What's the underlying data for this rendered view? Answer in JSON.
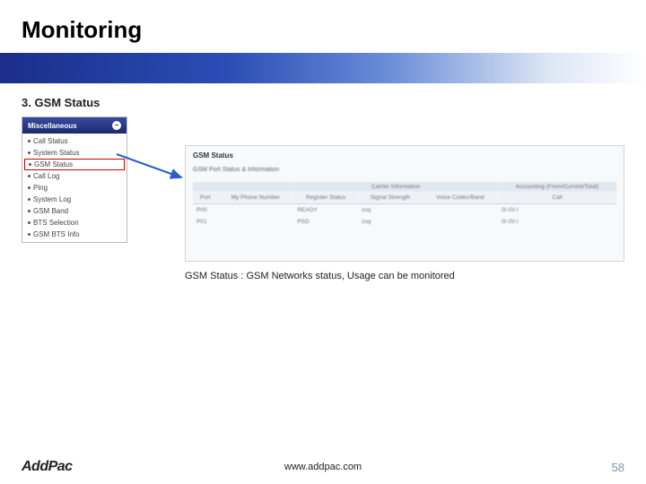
{
  "title": "Monitoring",
  "section": "3. GSM Status",
  "sidebar": {
    "header": "Miscellaneous",
    "items": [
      "Call Status",
      "System Status",
      "GSM Status",
      "Call Log",
      "Ping",
      "System Log",
      "GSM Band",
      "BTS Selection",
      "GSM BTS Info"
    ],
    "highlight_index": 2
  },
  "panel": {
    "title": "GSM Status",
    "subtitle": "GSM Port Status & Information",
    "group_headers": [
      "",
      "Carrier Information",
      "Accounting (From/Current/Total)"
    ],
    "columns": [
      "Port",
      "My Phone Number",
      "Register Status",
      "Signal Strength",
      "Voice Codec/Band",
      "Call"
    ],
    "rows": [
      [
        "P00",
        "",
        "READY",
        "csq",
        "",
        "0/-/0/-/"
      ],
      [
        "P01",
        "",
        "PSD",
        "csq",
        "",
        "0/-/0/-/"
      ]
    ]
  },
  "caption": "GSM Status : GSM Networks status, Usage can be monitored",
  "footer": {
    "logo": "AddPac",
    "url": "www.addpac.com",
    "page": "58"
  },
  "colors": {
    "band_start": "#1a2e8a",
    "highlight_border": "#c00",
    "arrow": "#2a5fc9"
  }
}
